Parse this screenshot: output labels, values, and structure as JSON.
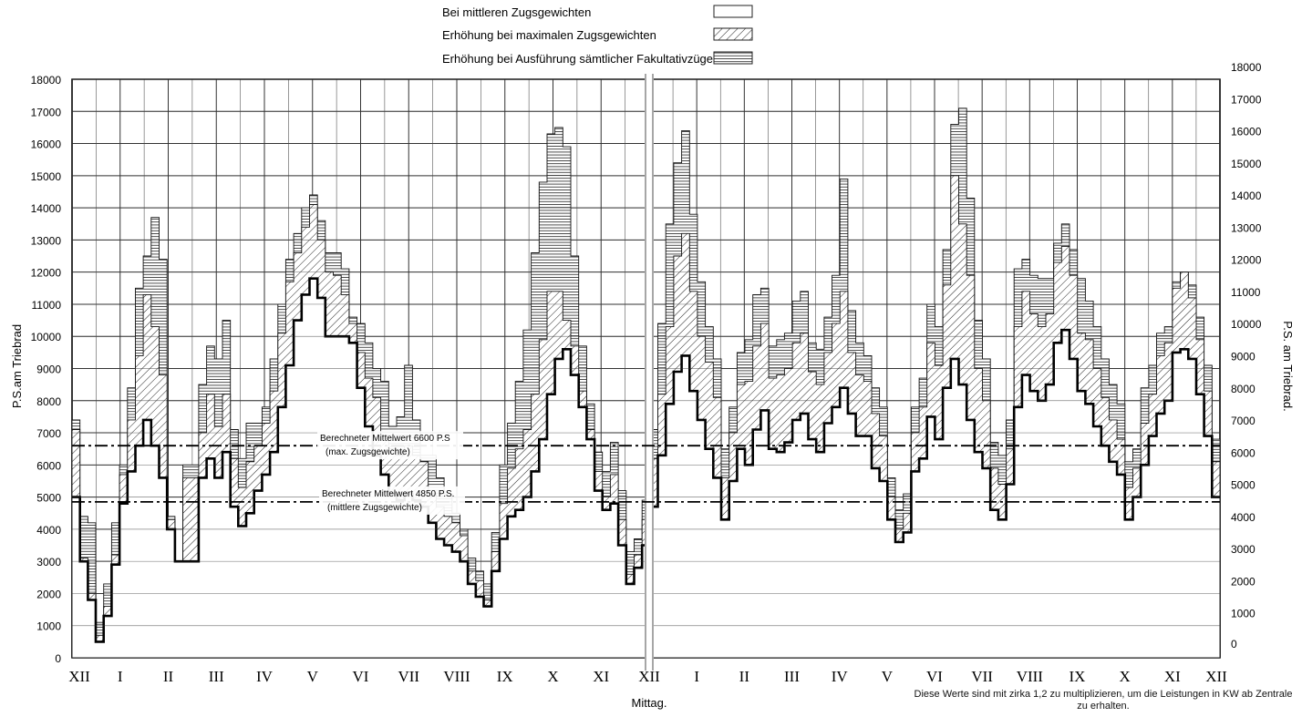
{
  "chart_data": {
    "type": "area",
    "legend": {
      "placement": "top-center",
      "entries": [
        {
          "label": "Bei mittleren Zugsgewichten",
          "fill": "plain"
        },
        {
          "label": "Erhöhung bei maximalen Zugsgewichten",
          "fill": "diagonal-hatch"
        },
        {
          "label": "Erhöhung bei Ausführung sämtlicher Fakultativzüge",
          "fill": "horizontal-hatch"
        }
      ]
    },
    "y_left": {
      "label": "P.S.am Triebrad",
      "ticks": [
        "0",
        "1000",
        "2000",
        "3000",
        "4000",
        "5000",
        "6000",
        "7000",
        "8000",
        "9000",
        "10000",
        "11000",
        "12000",
        "13000",
        "14000",
        "15000",
        "16000",
        "17000",
        "18000"
      ],
      "ylim": [
        0,
        18000
      ]
    },
    "y_right": {
      "label": "P.S. am Triebrad.",
      "ticks": [
        "0",
        "1000",
        "2000",
        "3000",
        "4000",
        "5000",
        "6000",
        "7000",
        "8000",
        "9000",
        "10000",
        "11000",
        "12000",
        "13000",
        "14000",
        "15000",
        "16000",
        "17000",
        "18000"
      ]
    },
    "x_ticks": [
      "XII",
      "I",
      "II",
      "III",
      "IV",
      "V",
      "VI",
      "VII",
      "VIII",
      "IX",
      "X",
      "XI",
      "XII",
      "I",
      "II",
      "III",
      "IV",
      "V",
      "VI",
      "VII",
      "VIII",
      "IX",
      "X",
      "XI",
      "XII"
    ],
    "x_center_label": "Mittag.",
    "grid": true,
    "reference_lines": [
      {
        "label": "Berechneter Mittelwert 6600 P.S",
        "sublabel": "(max. Zugsgewichte)",
        "value": 6600
      },
      {
        "label": "Berechneter Mittelwert 4850 P.S.",
        "sublabel": "(mittlere Zugsgewichte)",
        "value": 4850
      }
    ],
    "series": [
      {
        "name": "Bei mittleren Zugsgewichten",
        "values": [
          5000,
          3000,
          1800,
          500,
          1300,
          2900,
          4800,
          5800,
          6600,
          7400,
          6600,
          5600,
          4000,
          3000,
          3000,
          3000,
          5600,
          6200,
          5600,
          6400,
          4700,
          4100,
          4500,
          5200,
          5700,
          6400,
          7800,
          9100,
          10500,
          11300,
          11800,
          11200,
          10000,
          10000,
          10000,
          9800,
          8400,
          7200,
          6300,
          5700,
          5100,
          4900,
          5100,
          4900,
          4700,
          4200,
          3700,
          3500,
          3300,
          3000,
          2300,
          1900,
          1600,
          2700,
          3700,
          4400,
          4600,
          5000,
          5800,
          6800,
          8200,
          9300,
          9600,
          8800,
          7800,
          6800,
          5200,
          4600,
          4800,
          3500,
          2300,
          2800,
          3500,
          4700,
          6300,
          7900,
          8900,
          9400,
          8300,
          7400,
          6500,
          5600,
          4300,
          5500,
          6500,
          6000,
          7100,
          7700,
          6500,
          6400,
          6700,
          7400,
          7600,
          6800,
          6400,
          7300,
          7800,
          8400,
          7600,
          6900,
          6900,
          5900,
          5500,
          4300,
          3600,
          3900,
          5800,
          6200,
          7500,
          6800,
          8400,
          9300,
          8500,
          7400,
          6400,
          5900,
          4600,
          4300,
          5400,
          7800,
          8800,
          8300,
          8000,
          8500,
          9800,
          10200,
          9300,
          8300,
          7900,
          7200,
          6600,
          6100,
          5700,
          4300,
          5000,
          6000,
          6900,
          7600,
          8000,
          9500,
          9600,
          9300,
          8200,
          6900,
          5000
        ]
      },
      {
        "name": "Erhöhung bei maximalen Zugsgewichten",
        "values": [
          7100,
          3100,
          2000,
          700,
          1600,
          3200,
          5700,
          7400,
          9400,
          11300,
          10300,
          8800,
          4300,
          3000,
          5600,
          5600,
          7000,
          8200,
          7200,
          8200,
          6200,
          5300,
          6100,
          6600,
          7300,
          8300,
          10100,
          11700,
          12600,
          13400,
          14100,
          13000,
          12000,
          11900,
          11300,
          10400,
          9500,
          8700,
          8100,
          6900,
          6500,
          6300,
          6600,
          6300,
          6100,
          5100,
          4700,
          4400,
          4200,
          3800,
          2700,
          2400,
          1800,
          3300,
          4800,
          5900,
          6500,
          7100,
          8200,
          9900,
          11400,
          11400,
          10500,
          9700,
          8300,
          7100,
          5800,
          5000,
          5700,
          4300,
          2600,
          3200,
          4300,
          6200,
          8200,
          10300,
          12500,
          13200,
          11400,
          10000,
          9200,
          8100,
          5600,
          7000,
          8500,
          8600,
          9700,
          10400,
          8700,
          8800,
          9000,
          9800,
          10100,
          8900,
          8500,
          9500,
          10400,
          11400,
          9500,
          8800,
          8600,
          7600,
          6900,
          5000,
          4000,
          4500,
          7000,
          7800,
          9800,
          9100,
          11600,
          15000,
          13500,
          11900,
          9000,
          8000,
          5900,
          5400,
          6500,
          10300,
          11400,
          10700,
          10300,
          10700,
          12300,
          12800,
          11900,
          10100,
          9900,
          9000,
          8100,
          7400,
          6800,
          5300,
          5900,
          7300,
          8200,
          9400,
          9800,
          11500,
          12000,
          11200,
          9900,
          8300,
          6100
        ]
      },
      {
        "name": "Erhöhung bei Ausführung sämtlicher Fakultativzüge",
        "values": [
          7400,
          4400,
          4200,
          1100,
          2300,
          4200,
          6000,
          8400,
          11500,
          12500,
          13700,
          12400,
          4400,
          3000,
          6000,
          6000,
          8500,
          9700,
          9300,
          10500,
          7100,
          6200,
          7300,
          7300,
          7800,
          9300,
          11000,
          12400,
          13200,
          14000,
          14400,
          13600,
          12600,
          12600,
          12100,
          10600,
          10400,
          9800,
          9000,
          8600,
          7200,
          7500,
          9100,
          7400,
          6300,
          6300,
          5600,
          5100,
          4500,
          4000,
          3100,
          2700,
          2300,
          3900,
          6000,
          7300,
          8600,
          10200,
          12600,
          14800,
          16300,
          16500,
          15900,
          12500,
          9700,
          7900,
          6400,
          5800,
          6700,
          5200,
          3300,
          3700,
          4900,
          7100,
          10400,
          13500,
          15400,
          16400,
          13800,
          11700,
          10300,
          9300,
          6500,
          7800,
          9500,
          9900,
          11300,
          11500,
          9700,
          9900,
          10100,
          11100,
          11400,
          9800,
          9600,
          10600,
          11900,
          14900,
          10800,
          9800,
          9400,
          8400,
          7800,
          5600,
          4600,
          5100,
          7800,
          8700,
          11000,
          10300,
          12700,
          16600,
          17100,
          14300,
          10500,
          9300,
          6700,
          6300,
          7400,
          12100,
          12400,
          11900,
          11800,
          11800,
          12900,
          13500,
          12700,
          11800,
          11100,
          10300,
          9300,
          8500,
          7900,
          6100,
          6500,
          8400,
          9100,
          10100,
          10300,
          11700,
          12000,
          11600,
          10600,
          9100,
          6800
        ]
      }
    ]
  },
  "note": "Diese Werte sind mit zirka 1,2 zu multiplizieren, um die Leistungen in KW ab Zentrale zu erhalten."
}
